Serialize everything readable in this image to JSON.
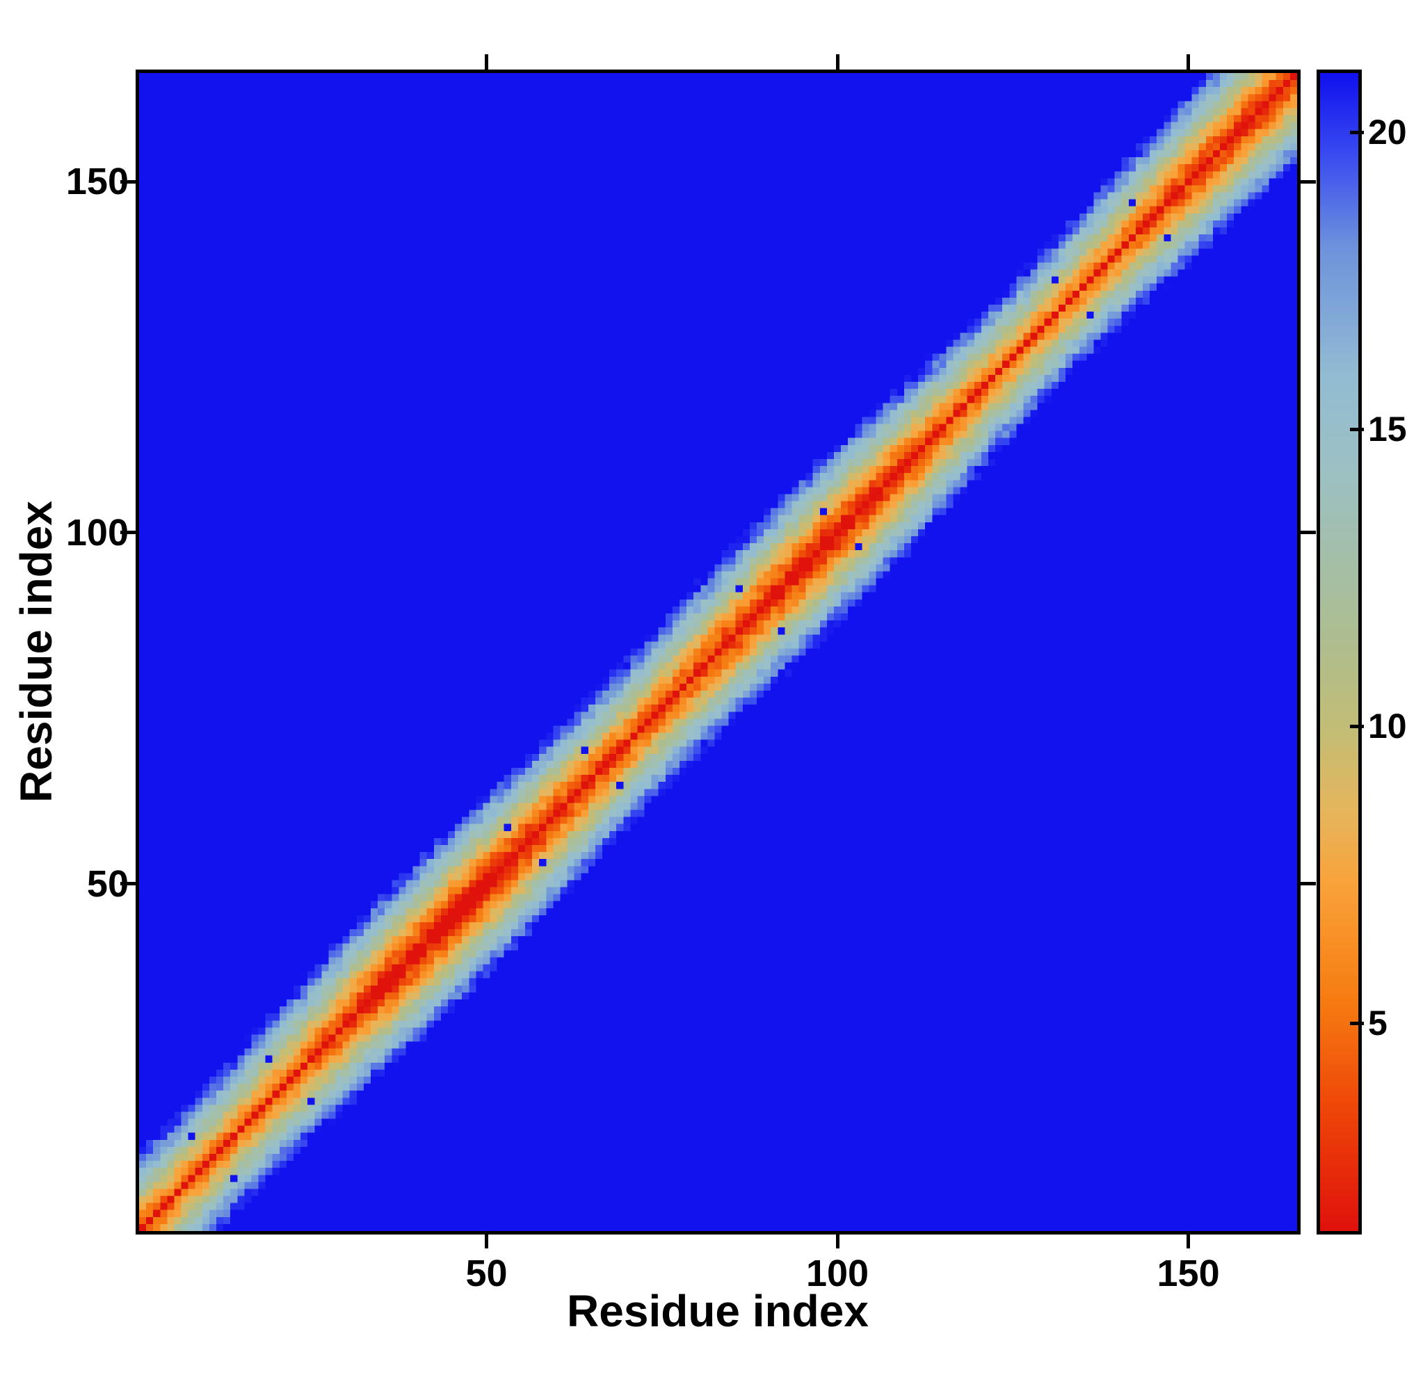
{
  "figure": {
    "background": "#ffffff",
    "xlabel": "Residue index",
    "ylabel": "Residue index"
  },
  "chart_data": {
    "type": "heatmap",
    "title": "",
    "xlabel": "Residue index",
    "ylabel": "Residue index",
    "n_residues": 165,
    "x_range": [
      1,
      165
    ],
    "y_range": [
      1,
      165
    ],
    "x_ticks": [
      50,
      100,
      150
    ],
    "y_ticks": [
      50,
      100,
      150
    ],
    "colorbar": {
      "vmin": 1.5,
      "vmax": 21.0,
      "ticks": [
        5,
        10,
        15,
        20
      ],
      "orientation": "vertical",
      "position": "right"
    },
    "value_model": {
      "description": "residue-residue distance map: value ~ intercept + slope*|i-j| with symmetric jitter, clamped to [vmin,vmax]; off-band field saturates at vmax (blue)",
      "diagonal_value": 1.5,
      "intercept": 2.0,
      "slope": 1.58,
      "jitter_amplitude": 1.3,
      "wobble_amp1": 1.3,
      "wobble_freq1": 0.055,
      "wobble_amp2": 0.9,
      "wobble_freq2": 0.021,
      "band_halfwidth_residues": 12
    },
    "blue_specks_pairs": [
      [
        8,
        14
      ],
      [
        19,
        25
      ],
      [
        53,
        58
      ],
      [
        64,
        69
      ],
      [
        86,
        92
      ],
      [
        98,
        103
      ],
      [
        131,
        136
      ],
      [
        142,
        147
      ]
    ],
    "colormap": {
      "name": "red-yellow-blue (low=red near diagonal, high=blue far field)",
      "stops": [
        {
          "t": 0.0,
          "color": "#e0120c"
        },
        {
          "t": 0.1,
          "color": "#ee4408"
        },
        {
          "t": 0.2,
          "color": "#f67d12"
        },
        {
          "t": 0.3,
          "color": "#f9a33b"
        },
        {
          "t": 0.36,
          "color": "#e7b55c"
        },
        {
          "t": 0.43,
          "color": "#c4bd75"
        },
        {
          "t": 0.5,
          "color": "#b0bd8c"
        },
        {
          "t": 0.58,
          "color": "#a4bfa9"
        },
        {
          "t": 0.66,
          "color": "#9cc0c4"
        },
        {
          "t": 0.74,
          "color": "#92bcd2"
        },
        {
          "t": 0.85,
          "color": "#6f93dc"
        },
        {
          "t": 0.93,
          "color": "#3a4df0"
        },
        {
          "t": 1.0,
          "color": "#1212ee"
        }
      ]
    },
    "grid": false,
    "legend": false
  },
  "colors": {
    "spine": "#000000",
    "far_field_blue": "#1212ee",
    "diagonal_red": "#e0120c"
  }
}
